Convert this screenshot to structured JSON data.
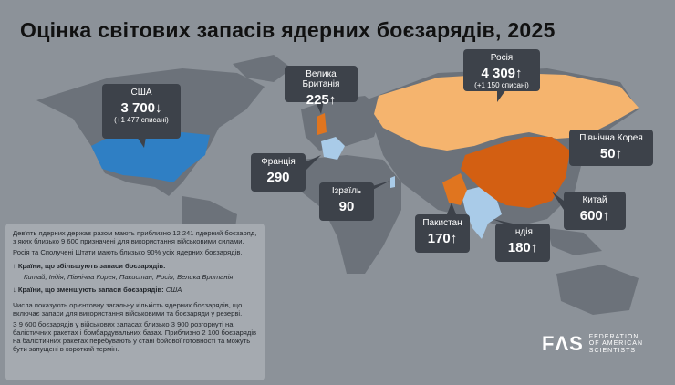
{
  "header": {
    "title": "Оцінка світових запасів ядерних боєзарядів, 2025"
  },
  "callouts": [
    {
      "country": "США",
      "value": "3 700↓",
      "note": "(+1 477 списані)"
    },
    {
      "country": "Велика Британія",
      "value": "225↑"
    },
    {
      "country": "Росія",
      "value": "4 309↑",
      "note": "(+1 150 списані)"
    },
    {
      "country": "Північна Корея",
      "value": "50↑"
    },
    {
      "country": "Франція",
      "value": "290"
    },
    {
      "country": "Ізраїль",
      "value": "90"
    },
    {
      "country": "Китай",
      "value": "600↑"
    },
    {
      "country": "Пакистан",
      "value": "170↑"
    },
    {
      "country": "Індія",
      "value": "180↑"
    }
  ],
  "info": {
    "paragraphs": [
      "Дев'ять ядерних держав разом мають приблизно 12 241 ядерний боєзаряд, з яких близько 9 600 призначені для використання військовими силами.",
      "Росія та Сполучені Штати мають близько 90% усіх ядерних боєзарядів."
    ],
    "increasing_heading": "↑  Країни, що збільшують запаси боєзарядів:",
    "increasing_list": "Китай, Індія, Північна Корея, Пакистан, Росія, Велика Британія",
    "decreasing_heading": "↓  Країни, що зменшують запаси боєзарядів:",
    "decreasing_list": "США",
    "notes": [
      "Числа показують орієнтовну загальну кількість ядерних боєзарядів, що включає запаси для використання військовими та боєзаряди у резерві.",
      "З 9 600 боєзарядів у військових запасах близько 3 900 розгорнуті на балістичних ракетах і бомбардувальних базах. Приблизно 2 100 боєзарядів на балістичних ракетах перебувають у стані бойової готовності та можуть бути запущені в короткий термін."
    ]
  },
  "logo": {
    "mark": "FΛS",
    "name": [
      "FEDERATION",
      "OF AMERICAN",
      "SCIENTISTS"
    ]
  }
}
